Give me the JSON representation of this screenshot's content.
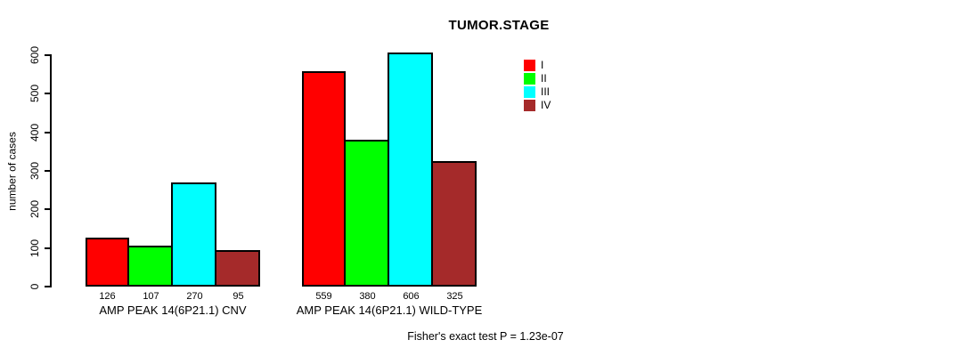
{
  "title": "TUMOR.STAGE",
  "y_axis": {
    "label": "number of cases",
    "ticks": [
      0,
      100,
      200,
      300,
      400,
      500,
      600
    ]
  },
  "groups": [
    {
      "label": "AMP PEAK 14(6P21.1) CNV"
    },
    {
      "label": "AMP PEAK 14(6P21.1) WILD-TYPE"
    }
  ],
  "legend": {
    "entries": [
      {
        "label": "I",
        "color": "#FF0000"
      },
      {
        "label": "II",
        "color": "#00FF00"
      },
      {
        "label": "III",
        "color": "#00FFFF"
      },
      {
        "label": "IV",
        "color": "#A52A2A"
      }
    ]
  },
  "footer": "Fisher's exact test P = 1.23e-07",
  "chart_data": {
    "type": "bar",
    "title": "TUMOR.STAGE",
    "xlabel": "",
    "ylabel": "number of cases",
    "ylim": [
      0,
      600
    ],
    "yticks": [
      0,
      100,
      200,
      300,
      400,
      500,
      600
    ],
    "grid": false,
    "legend_position": "top-right",
    "bar_value_labels_shown": true,
    "categories": [
      "AMP PEAK 14(6P21.1) CNV",
      "AMP PEAK 14(6P21.1) WILD-TYPE"
    ],
    "series": [
      {
        "name": "I",
        "color": "#FF0000",
        "values": [
          126,
          559
        ]
      },
      {
        "name": "II",
        "color": "#00FF00",
        "values": [
          107,
          380
        ]
      },
      {
        "name": "III",
        "color": "#00FFFF",
        "values": [
          270,
          606
        ]
      },
      {
        "name": "IV",
        "color": "#A52A2A",
        "values": [
          95,
          325
        ]
      }
    ],
    "annotation": "Fisher's exact test P = 1.23e-07"
  }
}
